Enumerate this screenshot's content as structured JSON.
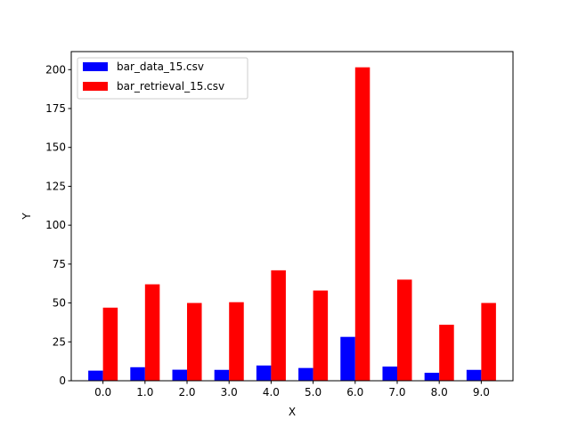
{
  "chart_data": {
    "type": "bar",
    "title": "",
    "xlabel": "X",
    "ylabel": "Y",
    "categories": [
      "0.0",
      "1.0",
      "2.0",
      "3.0",
      "4.0",
      "5.0",
      "6.0",
      "7.0",
      "8.0",
      "9.0"
    ],
    "series": [
      {
        "name": "bar_data_15.csv",
        "color": "#0000ff",
        "values": [
          6.5,
          8.7,
          7.1,
          7.0,
          9.8,
          8.2,
          28.2,
          9.1,
          5.1,
          7.0
        ]
      },
      {
        "name": "bar_retrieval_15.csv",
        "color": "#ff0000",
        "values": [
          47.0,
          62.0,
          50.0,
          50.5,
          71.0,
          58.0,
          201.5,
          65.0,
          36.0,
          50.0
        ]
      }
    ],
    "yticks": [
      "0",
      "25",
      "50",
      "75",
      "100",
      "125",
      "150",
      "175",
      "200"
    ],
    "ylim": [
      0,
      211.6
    ],
    "xlim": [
      -0.58,
      9.93
    ],
    "grid": false,
    "legend_position": "top-left"
  }
}
